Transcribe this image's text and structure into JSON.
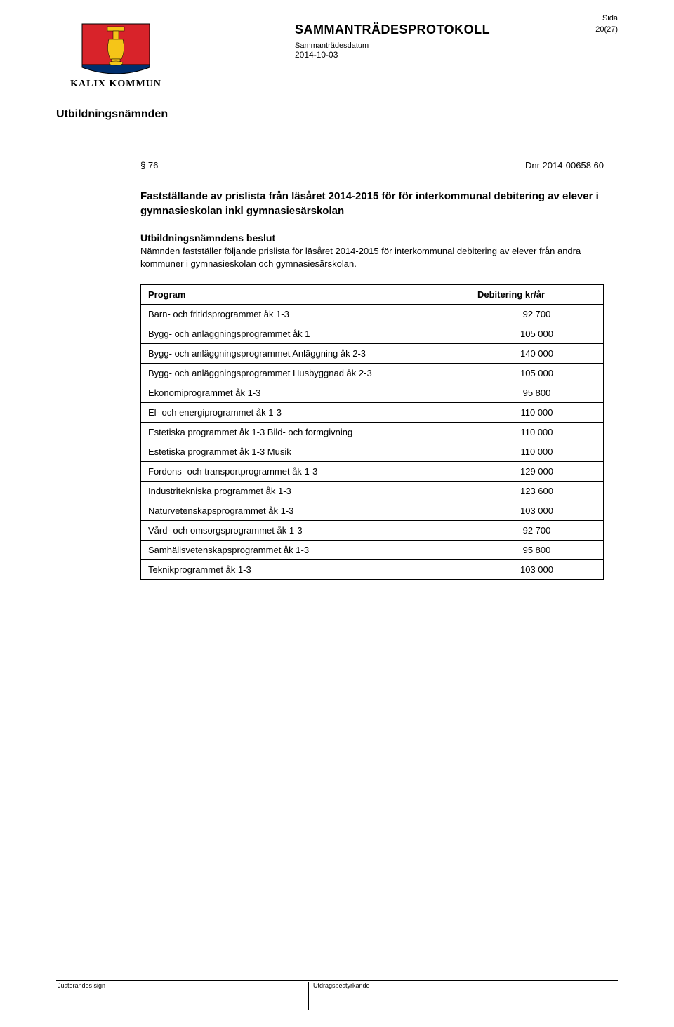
{
  "header": {
    "orgName": "KALIX KOMMUN",
    "docTitle": "SAMMANTRÄDESPROTOKOLL",
    "sideLabel": "Sida",
    "pageNumber": "20(27)",
    "dateLabel": "Sammanträdesdatum",
    "date": "2014-10-03",
    "shieldColors": {
      "red": "#d8232a",
      "yellow": "#f5c518",
      "blue": "#002e6d"
    }
  },
  "committee": "Utbildningsnämnden",
  "section": {
    "paragraph": "§ 76",
    "dnr": "Dnr 2014-00658 60",
    "title": "Fastställande av prislista från läsåret 2014-2015 för för interkommunal debitering av elever i gymnasieskolan inkl gymnasiesärskolan",
    "decisionHeading": "Utbildningsnämndens beslut",
    "decisionBody": "Nämnden fastställer följande prislista för läsåret 2014-2015 för interkommunal debitering av elever från andra kommuner i gymnasieskolan och gymnasiesärskolan."
  },
  "table": {
    "type": "table",
    "columns": [
      "Program",
      "Debitering kr/år"
    ],
    "rows": [
      [
        "Barn- och fritidsprogrammet åk 1-3",
        "92 700"
      ],
      [
        "Bygg- och anläggningsprogrammet åk 1",
        "105 000"
      ],
      [
        "Bygg- och anläggningsprogrammet Anläggning åk 2-3",
        "140 000"
      ],
      [
        "Bygg- och anläggningsprogrammet Husbyggnad åk 2-3",
        "105 000"
      ],
      [
        "Ekonomiprogrammet åk 1-3",
        "95 800"
      ],
      [
        "El- och energiprogrammet åk 1-3",
        "110 000"
      ],
      [
        "Estetiska programmet åk 1-3 Bild- och formgivning",
        "110 000"
      ],
      [
        "Estetiska programmet åk 1-3 Musik",
        "110 000"
      ],
      [
        "Fordons- och transportprogrammet åk 1-3",
        "129 000"
      ],
      [
        "Industritekniska programmet åk 1-3",
        "123 600"
      ],
      [
        "Naturvetenskapsprogrammet åk 1-3",
        "103 000"
      ],
      [
        "Vård- och omsorgsprogrammet åk 1-3",
        "92 700"
      ],
      [
        "Samhällsvetenskapsprogrammet åk 1-3",
        "95 800"
      ],
      [
        "Teknikprogrammet åk 1-3",
        "103 000"
      ]
    ],
    "border_color": "#000000",
    "fontsize": 13,
    "column_widths": [
      "auto",
      "190px"
    ]
  },
  "footer": {
    "left": "Justerandes sign",
    "right": "Utdragsbestyrkande"
  }
}
